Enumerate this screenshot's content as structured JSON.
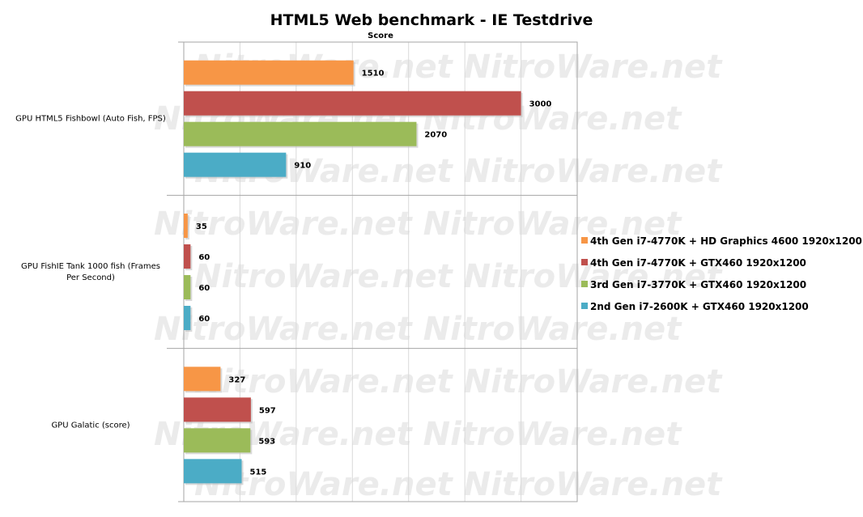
{
  "chart_data": {
    "type": "bar",
    "orientation": "horizontal",
    "title": "HTML5 Web benchmark - IE Testdrive",
    "xlabel": "Score",
    "ylabel": "",
    "xlim": [
      0,
      3500
    ],
    "grid": "vertical",
    "legend_position": "right",
    "watermark": "NitroWare.net",
    "categories": [
      "GPU HTML5 Fishbowl (Auto Fish, FPS)",
      "GPU FishIE Tank 1000 fish (Frames Per Second)",
      "GPU Galatic (score)"
    ],
    "series": [
      {
        "name": "4th Gen i7-4770K + HD Graphics 4600 1920x1200",
        "color": "#f79646",
        "values": [
          1510,
          35,
          327
        ]
      },
      {
        "name": "4th Gen i7-4770K + GTX460 1920x1200",
        "color": "#c0504d",
        "values": [
          3000,
          60,
          597
        ]
      },
      {
        "name": "3rd Gen i7-3770K + GTX460 1920x1200",
        "color": "#9bbb59",
        "values": [
          2070,
          60,
          593
        ]
      },
      {
        "name": "2nd Gen i7-2600K + GTX460 1920x1200",
        "color": "#4bacc6",
        "values": [
          910,
          60,
          515
        ]
      }
    ]
  }
}
